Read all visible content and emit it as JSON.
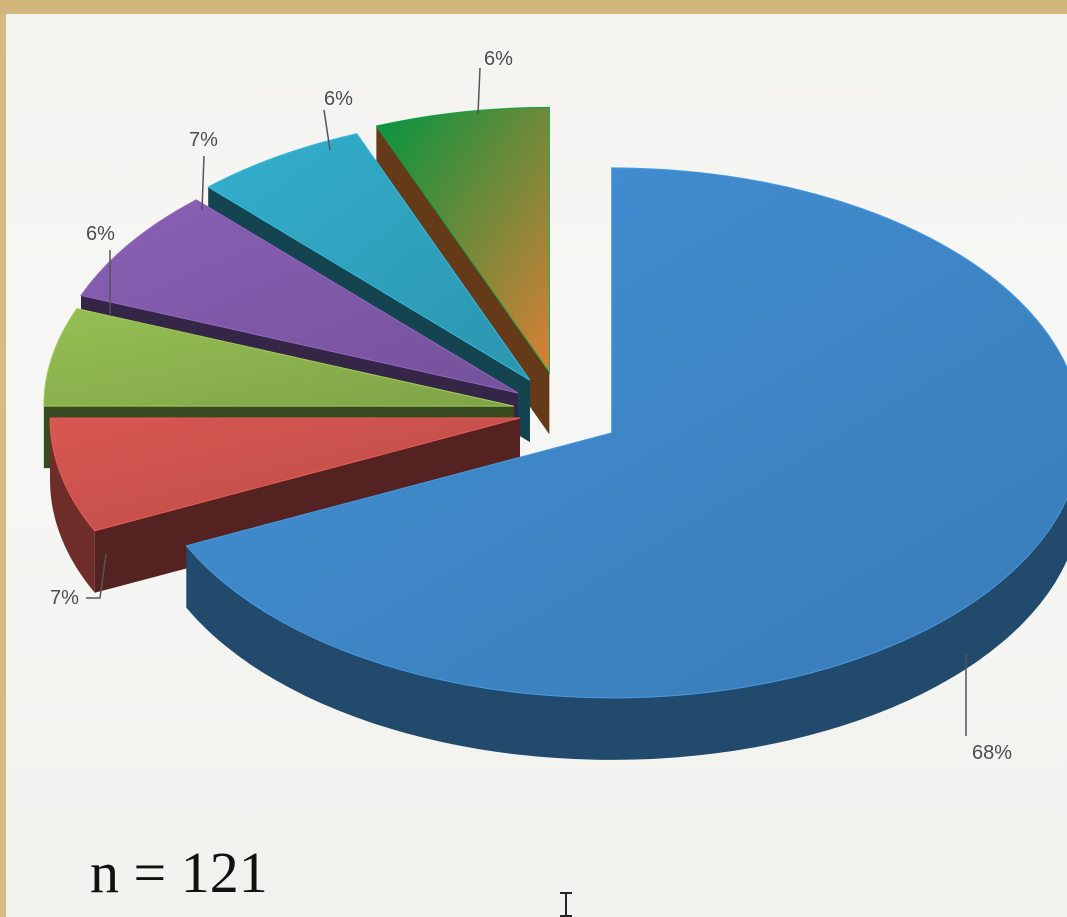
{
  "chart_data": {
    "type": "pie",
    "style": "3d-exploded",
    "slices": [
      {
        "label": "68%",
        "value": 68,
        "color": "#3e86c6"
      },
      {
        "label": "7%",
        "value": 7,
        "color": "#c9514c"
      },
      {
        "label": "6%",
        "value": 6,
        "color": "#8ab14d"
      },
      {
        "label": "7%",
        "value": 7,
        "color": "#7f59a8"
      },
      {
        "label": "6%",
        "value": 6,
        "color": "#2fa2be"
      },
      {
        "label": "6%",
        "value": 6,
        "color": "#ee8a3a"
      }
    ],
    "legend": "none"
  },
  "annotation": "n = 121"
}
